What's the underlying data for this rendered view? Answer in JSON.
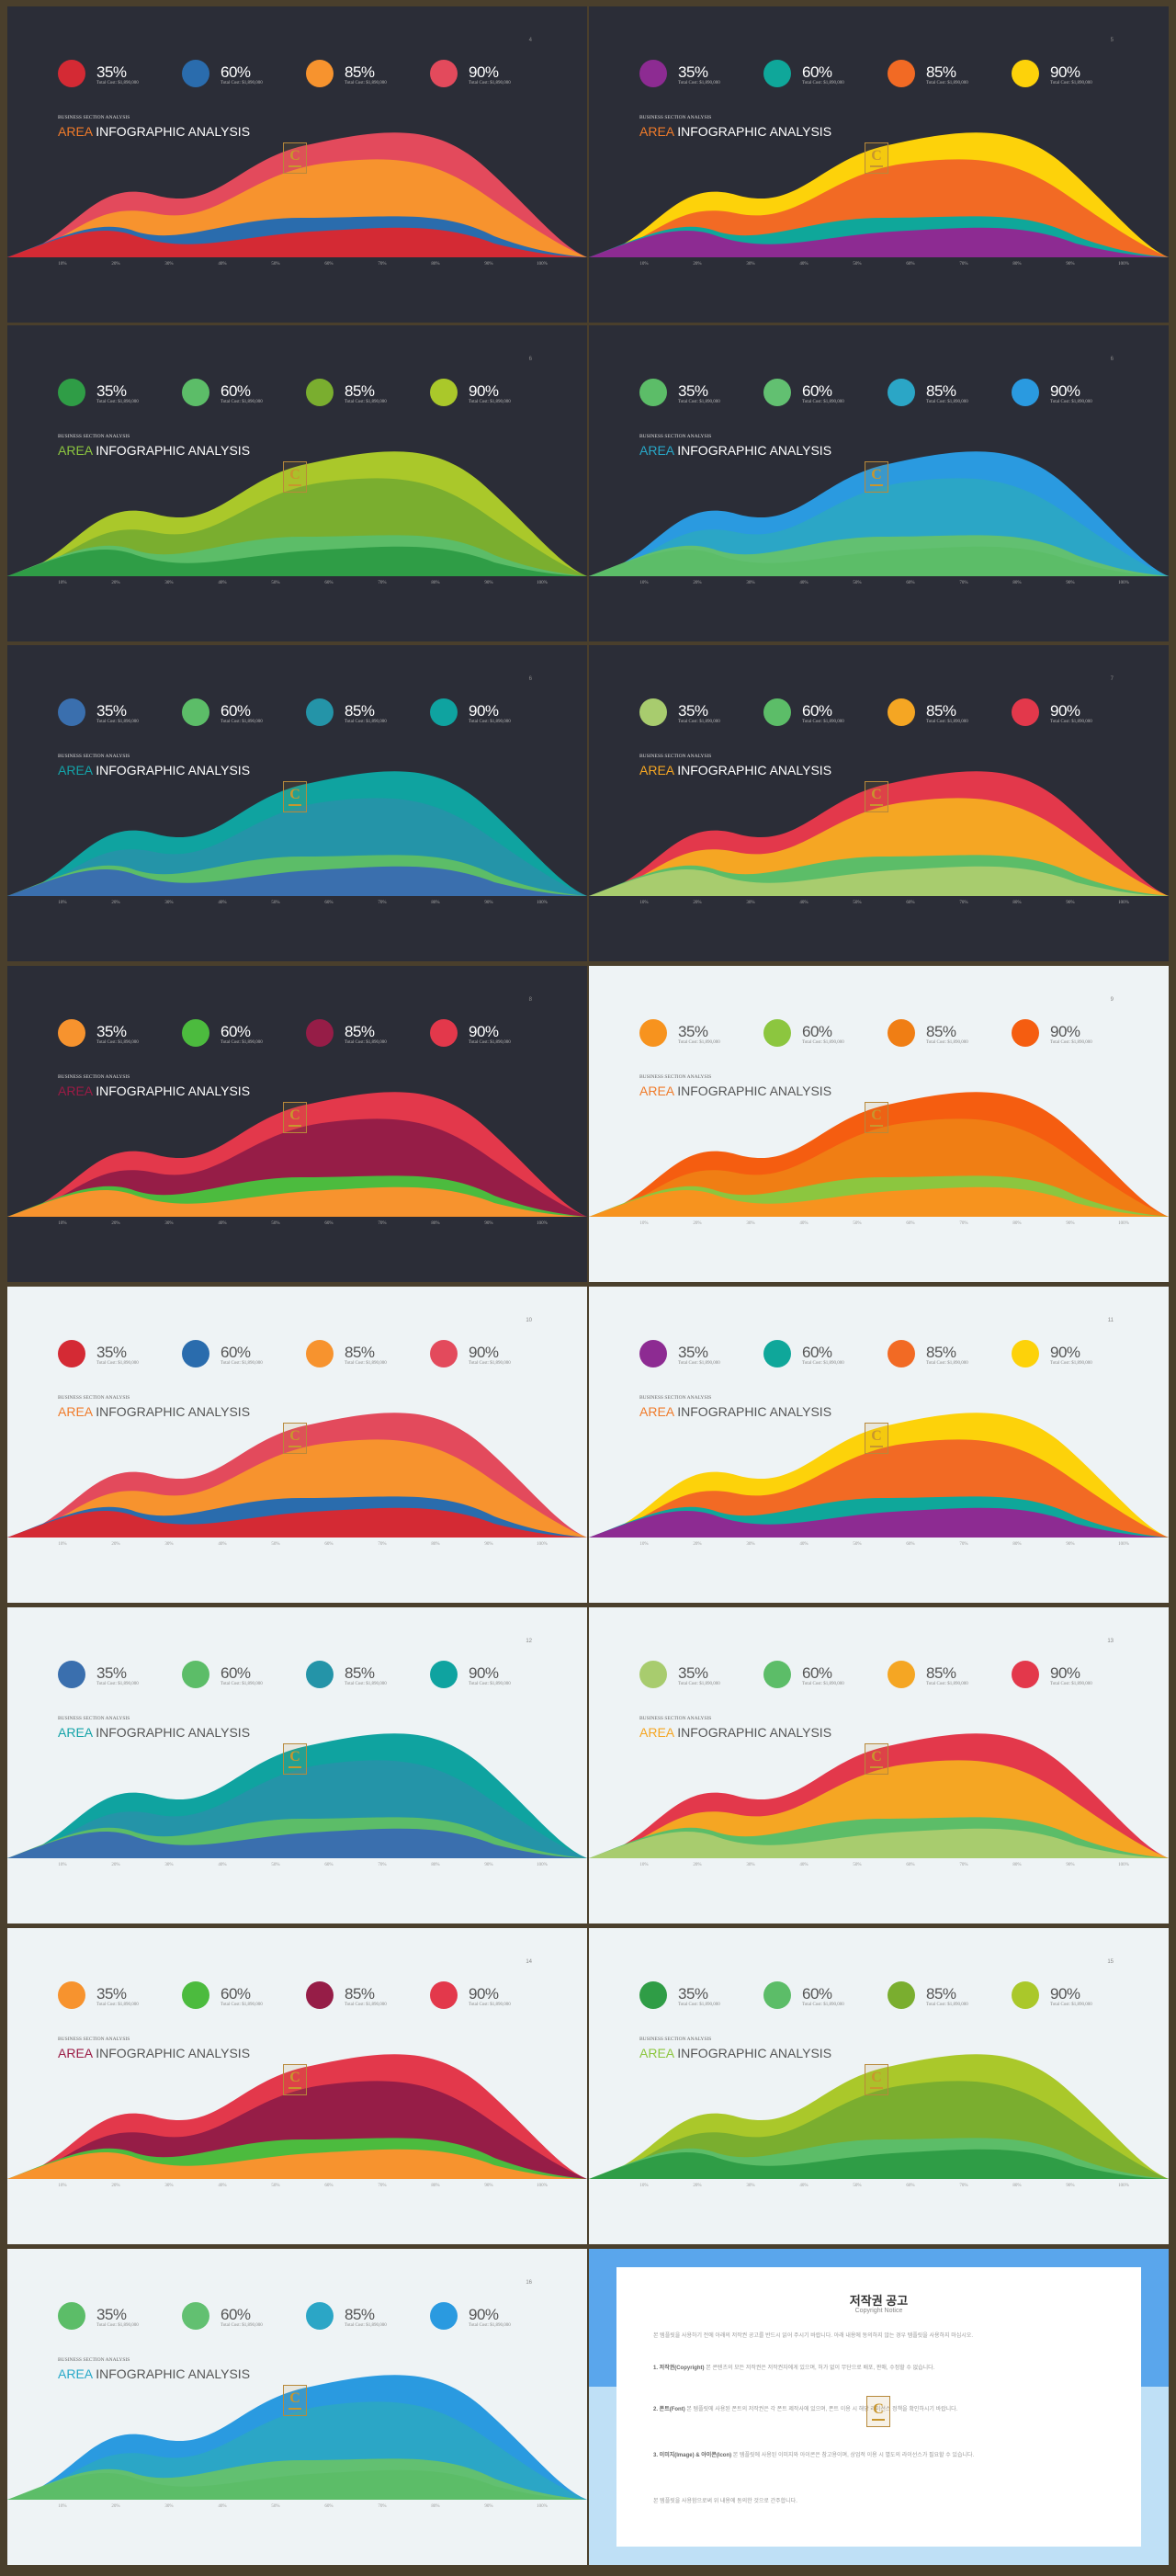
{
  "kicker": "BUSINESS SECTION ANALYSIS",
  "title_accent": "AREA",
  "title_rest": " INFOGRAPHIC ANALYSIS",
  "stat_sub": "Total Cost: $1,890,000",
  "logo_letter": "C",
  "axis_ticks": [
    "10%",
    "20%",
    "30%",
    "40%",
    "50%",
    "60%",
    "70%",
    "80%",
    "90%",
    "100%"
  ],
  "slides": [
    {
      "page": "4",
      "theme": "dark",
      "accent": "#f07b2a",
      "stats": [
        {
          "pct": "35%",
          "color": "#d42a34"
        },
        {
          "pct": "60%",
          "color": "#2a6cad"
        },
        {
          "pct": "85%",
          "color": "#f7932e"
        },
        {
          "pct": "90%",
          "color": "#e34a5c"
        }
      ]
    },
    {
      "page": "5",
      "theme": "dark",
      "accent": "#f07b2a",
      "stats": [
        {
          "pct": "35%",
          "color": "#8d2b92"
        },
        {
          "pct": "60%",
          "color": "#0fa79a"
        },
        {
          "pct": "85%",
          "color": "#f26a24"
        },
        {
          "pct": "90%",
          "color": "#fdd20a"
        }
      ]
    },
    {
      "page": "6",
      "theme": "dark",
      "accent": "#8cc63f",
      "stats": [
        {
          "pct": "35%",
          "color": "#2f9d46"
        },
        {
          "pct": "60%",
          "color": "#5cbd68"
        },
        {
          "pct": "85%",
          "color": "#7aae2f"
        },
        {
          "pct": "90%",
          "color": "#aac82a"
        }
      ]
    },
    {
      "page": "6",
      "theme": "dark",
      "accent": "#28a8c8",
      "stats": [
        {
          "pct": "35%",
          "color": "#5cbd68"
        },
        {
          "pct": "60%",
          "color": "#62c071"
        },
        {
          "pct": "85%",
          "color": "#2ba6c6"
        },
        {
          "pct": "90%",
          "color": "#2a9ae0"
        }
      ]
    },
    {
      "page": "6",
      "theme": "dark",
      "accent": "#14a3a8",
      "stats": [
        {
          "pct": "35%",
          "color": "#3a6fae"
        },
        {
          "pct": "60%",
          "color": "#5cbd68"
        },
        {
          "pct": "85%",
          "color": "#2494a8"
        },
        {
          "pct": "90%",
          "color": "#0fa3a0"
        }
      ]
    },
    {
      "page": "7",
      "theme": "dark",
      "accent": "#f5a623",
      "stats": [
        {
          "pct": "35%",
          "color": "#a8cc6e"
        },
        {
          "pct": "60%",
          "color": "#5cbd68"
        },
        {
          "pct": "85%",
          "color": "#f5a623"
        },
        {
          "pct": "90%",
          "color": "#e3384b"
        }
      ]
    },
    {
      "page": "8",
      "theme": "dark",
      "accent": "#9b1b45",
      "stats": [
        {
          "pct": "35%",
          "color": "#f7932e"
        },
        {
          "pct": "60%",
          "color": "#4cbb3e"
        },
        {
          "pct": "85%",
          "color": "#961d47"
        },
        {
          "pct": "90%",
          "color": "#e3384b"
        }
      ]
    },
    {
      "page": "9",
      "theme": "light",
      "accent": "#f07b2a",
      "stats": [
        {
          "pct": "35%",
          "color": "#f7931e"
        },
        {
          "pct": "60%",
          "color": "#8cc63f"
        },
        {
          "pct": "85%",
          "color": "#f07e14"
        },
        {
          "pct": "90%",
          "color": "#f55d10"
        }
      ]
    },
    {
      "page": "10",
      "theme": "light",
      "accent": "#f07b2a",
      "stats": [
        {
          "pct": "35%",
          "color": "#d42a34"
        },
        {
          "pct": "60%",
          "color": "#2a6cad"
        },
        {
          "pct": "85%",
          "color": "#f7932e"
        },
        {
          "pct": "90%",
          "color": "#e34a5c"
        }
      ]
    },
    {
      "page": "11",
      "theme": "light",
      "accent": "#f07b2a",
      "stats": [
        {
          "pct": "35%",
          "color": "#8d2b92"
        },
        {
          "pct": "60%",
          "color": "#0fa79a"
        },
        {
          "pct": "85%",
          "color": "#f26a24"
        },
        {
          "pct": "90%",
          "color": "#fdd20a"
        }
      ]
    },
    {
      "page": "12",
      "theme": "light",
      "accent": "#14a3a8",
      "stats": [
        {
          "pct": "35%",
          "color": "#3a6fae"
        },
        {
          "pct": "60%",
          "color": "#5cbd68"
        },
        {
          "pct": "85%",
          "color": "#2494a8"
        },
        {
          "pct": "90%",
          "color": "#0fa3a0"
        }
      ]
    },
    {
      "page": "13",
      "theme": "light",
      "accent": "#f5a623",
      "stats": [
        {
          "pct": "35%",
          "color": "#a8cc6e"
        },
        {
          "pct": "60%",
          "color": "#5cbd68"
        },
        {
          "pct": "85%",
          "color": "#f5a623"
        },
        {
          "pct": "90%",
          "color": "#e3384b"
        }
      ]
    },
    {
      "page": "14",
      "theme": "light",
      "accent": "#9b1b45",
      "stats": [
        {
          "pct": "35%",
          "color": "#f7932e"
        },
        {
          "pct": "60%",
          "color": "#4cbb3e"
        },
        {
          "pct": "85%",
          "color": "#961d47"
        },
        {
          "pct": "90%",
          "color": "#e3384b"
        }
      ]
    },
    {
      "page": "15",
      "theme": "light",
      "accent": "#8cc63f",
      "stats": [
        {
          "pct": "35%",
          "color": "#2f9d46"
        },
        {
          "pct": "60%",
          "color": "#5cbd68"
        },
        {
          "pct": "85%",
          "color": "#7aae2f"
        },
        {
          "pct": "90%",
          "color": "#aac82a"
        }
      ]
    },
    {
      "page": "16",
      "theme": "light",
      "accent": "#28a8c8",
      "stats": [
        {
          "pct": "35%",
          "color": "#5cbd68"
        },
        {
          "pct": "60%",
          "color": "#62c071"
        },
        {
          "pct": "85%",
          "color": "#2ba6c6"
        },
        {
          "pct": "90%",
          "color": "#2a9ae0"
        }
      ]
    }
  ],
  "notice": {
    "title": "저작권 공고",
    "subtitle": "Copyright Notice",
    "p0": "본 템플릿을 사용하기 전에 아래의 저작권 공고를 반드시 읽어 주시기 바랍니다. 아래 내용에 동의하지 않는 경우 템플릿을 사용하지 마십시오.",
    "p1h": "1. 저작권(Copyright)",
    "p1": " 본 콘텐츠의 모든 저작권은 저작권자에게 있으며, 허가 없이 무단으로 배포, 판매, 수정할 수 없습니다.",
    "p2h": "2. 폰트(Font)",
    "p2": " 본 템플릿에 사용된 폰트의 저작권은 각 폰트 제작사에 있으며, 폰트 이용 시 해당 라이선스 정책을 확인하시기 바랍니다.",
    "p3h": "3. 이미지(Image) & 아이콘(Icon)",
    "p3": " 본 템플릿에 사용된 이미지와 아이콘은 참고용이며, 상업적 이용 시 별도의 라이선스가 필요할 수 있습니다.",
    "p4": "본 템플릿을 사용함으로써 위 내용에 동의한 것으로 간주합니다."
  }
}
